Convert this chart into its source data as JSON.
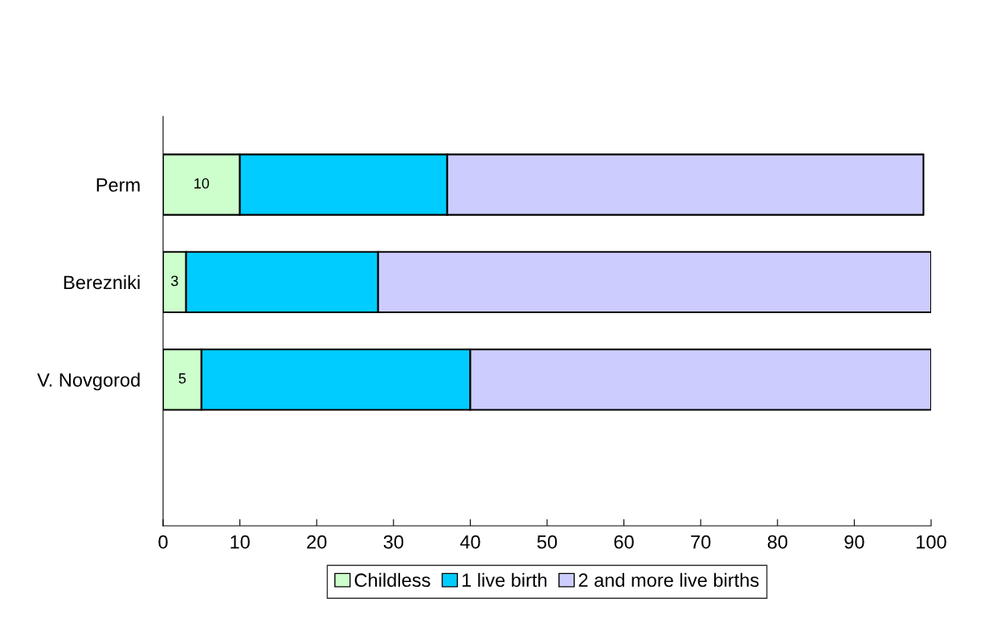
{
  "chart_data": {
    "type": "bar",
    "orientation": "horizontal",
    "stacked": true,
    "categories": [
      "Perm",
      "Berezniki",
      "V. Novgorod"
    ],
    "series": [
      {
        "name": "Childless",
        "color": "#ccffcc",
        "values": [
          10,
          3,
          5
        ],
        "value_labels": [
          "10",
          "3",
          "5"
        ]
      },
      {
        "name": "1 live birth",
        "color": "#00ccff",
        "values": [
          27,
          25,
          35
        ]
      },
      {
        "name": "2 and more live births",
        "color": "#ccccff",
        "values": [
          62,
          72,
          60
        ]
      }
    ],
    "xlim": [
      0,
      100
    ],
    "xticks": [
      0,
      10,
      20,
      30,
      40,
      50,
      60,
      70,
      80,
      90,
      100
    ],
    "grid": false,
    "legend": "bottom"
  }
}
